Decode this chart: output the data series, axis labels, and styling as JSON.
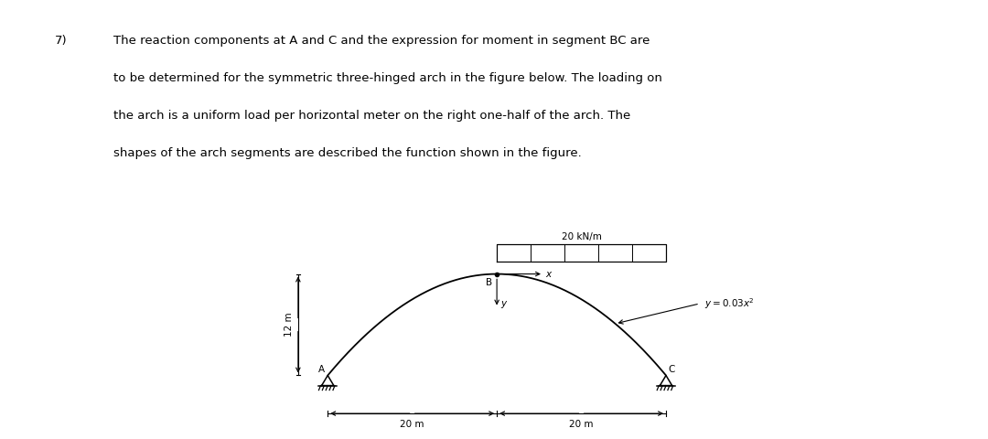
{
  "title_number": "7)",
  "text_lines": [
    "The reaction components at A and C and the expression for moment in segment BC are",
    "to be determined for the symmetric three-hinged arch in the figure below. The loading on",
    "the arch is a uniform load per horizontal meter on the right one-half of the arch. The",
    "shapes of the arch segments are described the function shown in the figure."
  ],
  "load_label": "20 kN/m",
  "equation_label": "y=0.03x²",
  "label_A": "A",
  "label_B": "B",
  "label_C": "C",
  "label_x": "x",
  "label_y": "y",
  "dim_left": "20 m",
  "dim_right": "20 m",
  "height_label": "12 m",
  "bg_color": "#ffffff",
  "line_color": "#000000",
  "text_fontsize": 9.5,
  "label_fontsize": 7.5,
  "fig_width": 10.8,
  "fig_height": 4.8,
  "dpi": 100
}
